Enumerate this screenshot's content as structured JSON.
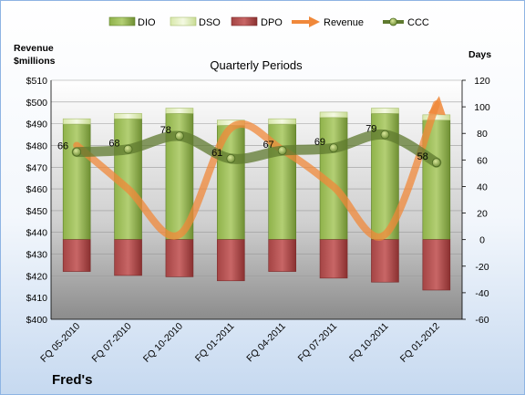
{
  "chart_data": {
    "type": "bar",
    "title": "Quarterly Periods",
    "brand": "Fred's",
    "y_left": {
      "label_line1": "Revenue",
      "label_line2": "$millions",
      "min": 400,
      "max": 510,
      "step": 10,
      "prefix": "$"
    },
    "y_right": {
      "label": "Days",
      "min": -60,
      "max": 120,
      "step": 20
    },
    "categories": [
      "FQ 05-2010",
      "FQ 07-2010",
      "FQ 10-2010",
      "FQ 01-2011",
      "FQ 04-2011",
      "FQ 07-2011",
      "FQ 10-2011",
      "FQ 01-2012"
    ],
    "legend": [
      "DIO",
      "DSO",
      "DPO",
      "Revenue",
      "CCC"
    ],
    "series": [
      {
        "name": "DIO",
        "axis": "right",
        "values": [
          87,
          91,
          95,
          86,
          87,
          92,
          95,
          90
        ]
      },
      {
        "name": "DSO",
        "axis": "right",
        "values": [
          4,
          4,
          4,
          4,
          4,
          4,
          4,
          4
        ]
      },
      {
        "name": "DPO",
        "axis": "right",
        "values": [
          -24,
          -27,
          -28,
          -31,
          -24,
          -29,
          -32,
          -38
        ]
      },
      {
        "name": "Revenue",
        "axis": "left",
        "values": [
          480,
          460,
          439,
          488,
          478,
          461,
          439,
          499
        ]
      },
      {
        "name": "CCC",
        "axis": "right",
        "values": [
          66,
          68,
          78,
          61,
          67,
          69,
          79,
          58
        ]
      }
    ],
    "colors": {
      "DIO": "#7a9c3c",
      "DIO_light": "#b7d27a",
      "DSO": "#e2efbf",
      "DPO": "#9a3a3a",
      "DPO_light": "#c86060",
      "Revenue": "#f0883a",
      "CCC": "#5f7a2f"
    }
  }
}
